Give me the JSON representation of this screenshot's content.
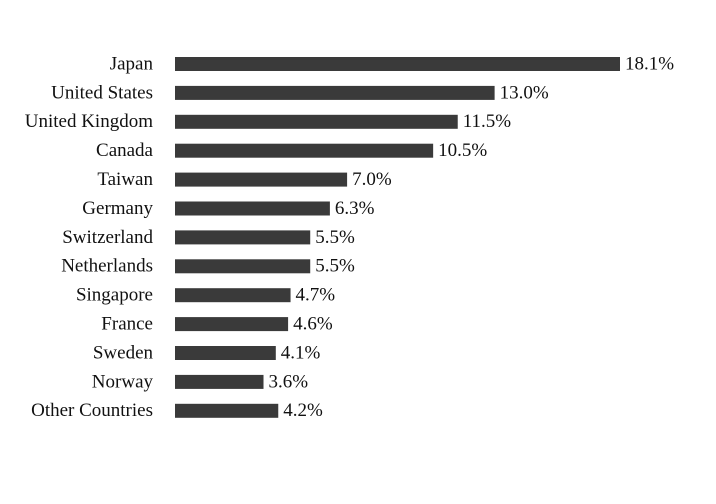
{
  "chart_data": {
    "type": "bar",
    "orientation": "horizontal",
    "categories": [
      "Japan",
      "United States",
      "United Kingdom",
      "Canada",
      "Taiwan",
      "Germany",
      "Switzerland",
      "Netherlands",
      "Singapore",
      "France",
      "Sweden",
      "Norway",
      "Other Countries"
    ],
    "values": [
      18.1,
      13.0,
      11.5,
      10.5,
      7.0,
      6.3,
      5.5,
      5.5,
      4.7,
      4.6,
      4.1,
      3.6,
      4.2
    ],
    "value_labels": [
      "18.1%",
      "13.0%",
      "11.5%",
      "10.5%",
      "7.0%",
      "6.3%",
      "5.5%",
      "5.5%",
      "4.7%",
      "4.6%",
      "4.1%",
      "3.6%",
      "4.2%"
    ],
    "color": "#3a3a3a"
  }
}
